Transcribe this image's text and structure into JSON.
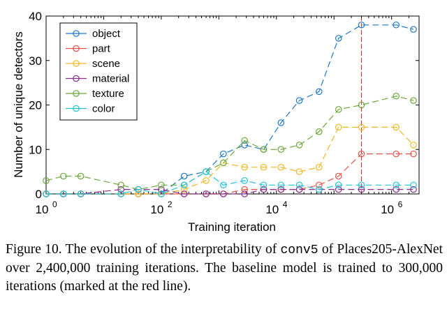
{
  "chart_data": {
    "type": "line",
    "title": "",
    "xlabel": "Training iteration",
    "ylabel": "Number of unique detectors",
    "xscale": "log",
    "xlim": [
      1,
      3000000
    ],
    "ylim": [
      0,
      40
    ],
    "yticks": [
      0,
      10,
      20,
      30,
      40
    ],
    "xticks": [
      {
        "value": 1,
        "base": "10",
        "exp": "0"
      },
      {
        "value": 100,
        "base": "10",
        "exp": "2"
      },
      {
        "value": 10000,
        "base": "10",
        "exp": "4"
      },
      {
        "value": 1000000,
        "base": "10",
        "exp": "6"
      }
    ],
    "x": [
      1,
      2,
      4,
      20,
      40,
      100,
      250,
      600,
      1200,
      2800,
      6000,
      12000,
      25000,
      55000,
      120000,
      300000,
      1200000,
      2400000
    ],
    "series": [
      {
        "name": "object",
        "color": "#1f77c4",
        "values": [
          0,
          0,
          0,
          0,
          0,
          0,
          4,
          5,
          9,
          11,
          10,
          16,
          21,
          23,
          35,
          38,
          38,
          37
        ]
      },
      {
        "name": "part",
        "color": "#e8524a",
        "values": [
          0,
          0,
          0,
          0,
          0,
          0,
          0,
          0,
          0,
          1,
          1,
          1,
          1,
          2,
          4,
          9,
          9,
          9
        ]
      },
      {
        "name": "scene",
        "color": "#f2b824",
        "values": [
          0,
          0,
          0,
          0,
          0,
          0,
          1,
          3,
          7,
          6,
          6,
          6,
          5,
          6,
          15,
          15,
          15,
          11
        ]
      },
      {
        "name": "material",
        "color": "#8b2d8e",
        "values": [
          0,
          0,
          0,
          1,
          1,
          1,
          0,
          0,
          0,
          0,
          1,
          1,
          1,
          1,
          1,
          1,
          1,
          1
        ]
      },
      {
        "name": "texture",
        "color": "#6aa83c",
        "values": [
          3,
          4,
          4,
          2,
          1,
          2,
          2,
          5,
          7,
          12,
          10,
          10,
          11,
          14,
          19,
          20,
          22,
          21
        ]
      },
      {
        "name": "color",
        "color": "#22c3d8",
        "values": [
          0,
          0,
          0,
          0,
          1,
          0,
          2,
          5,
          2,
          3,
          2,
          2,
          2,
          1,
          2,
          2,
          2,
          2
        ]
      }
    ],
    "baseline_marker": {
      "x": 300000,
      "color": "#e21f1f"
    },
    "grid": false,
    "legend_position": "top-left"
  },
  "caption": {
    "prefix": "Figure 10. The evolution of the interpretability of ",
    "code": "conv5",
    "mid": " of Places205-AlexNet over 2,400,000 training iterations. The baseline model is trained to 300,000 iterations (marked at the red line)."
  }
}
